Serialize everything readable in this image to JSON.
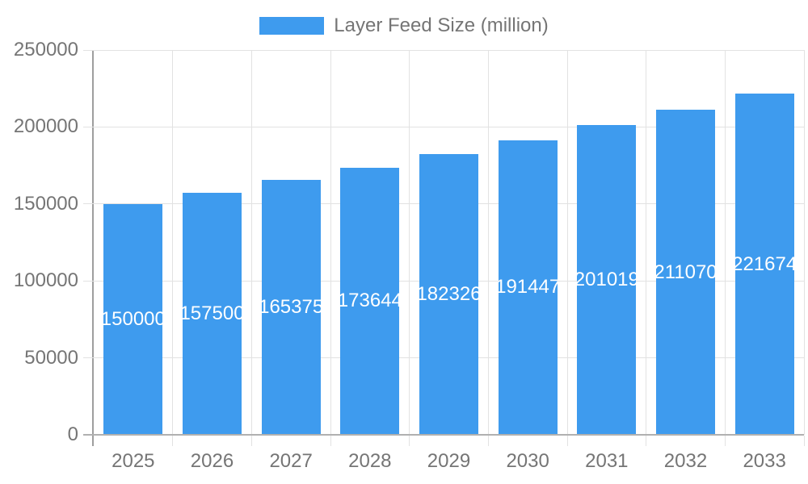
{
  "legend": {
    "label": "Layer Feed Size (million)"
  },
  "colors": {
    "bar": "#3e9bee",
    "bar_label": "#ffffff",
    "axis_text": "#757575",
    "grid": "#e2e2e2",
    "x_axis_line": "#b0b0b0",
    "y_axis_line": "#9e9e9e",
    "background": "#ffffff"
  },
  "chart_data": {
    "type": "bar",
    "title": "",
    "legend_entries": [
      "Layer Feed Size (million)"
    ],
    "legend_position": "top-center",
    "categories": [
      "2025",
      "2026",
      "2027",
      "2028",
      "2029",
      "2030",
      "2031",
      "2032",
      "2033"
    ],
    "series": [
      {
        "name": "Layer Feed Size (million)",
        "values": [
          150000,
          157500,
          165375,
          173644,
          182326,
          191447,
          201019,
          211070,
          221674
        ]
      }
    ],
    "bar_value_labels": [
      "150000",
      "157500",
      "165375",
      "173644",
      "182326",
      "191447",
      "201019",
      "211070",
      "221674"
    ],
    "xlabel": "",
    "ylabel": "",
    "y_ticks": [
      0,
      50000,
      100000,
      150000,
      200000,
      250000
    ],
    "y_tick_labels": [
      "0",
      "50000",
      "100000",
      "150000",
      "200000",
      "250000"
    ],
    "ylim": [
      0,
      250000
    ],
    "grid": true
  }
}
